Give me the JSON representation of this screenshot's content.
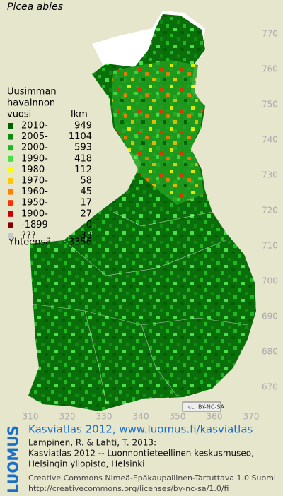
{
  "header": {
    "title": "Picea abies"
  },
  "legend": {
    "heading": [
      "Uusimman",
      "havainnon",
      "vuosi"
    ],
    "count_heading": "lkm",
    "items": [
      {
        "label": "2010-",
        "count": 949,
        "color": "#006000"
      },
      {
        "label": "2005-",
        "count": 1104,
        "color": "#108a10"
      },
      {
        "label": "2000-",
        "count": 593,
        "color": "#20b820"
      },
      {
        "label": "1990-",
        "count": 418,
        "color": "#48e048"
      },
      {
        "label": "1980-",
        "count": 112,
        "color": "#ffff00"
      },
      {
        "label": "1970-",
        "count": 58,
        "color": "#ffc800"
      },
      {
        "label": "1960-",
        "count": 45,
        "color": "#ff8000"
      },
      {
        "label": "1950-",
        "count": 17,
        "color": "#ff3000"
      },
      {
        "label": "1900-",
        "count": 27,
        "color": "#c80000"
      },
      {
        "label": "-1899",
        "count": 0,
        "color": "#800000"
      },
      {
        "label": "???",
        "count": 33,
        "color": "#c8c8c8"
      }
    ],
    "total_label": "Yhteensä",
    "total": 3356
  },
  "map": {
    "yticks": [
      770,
      760,
      750,
      740,
      730,
      720,
      710,
      700,
      690,
      680,
      670
    ],
    "xticks": [
      310,
      320,
      330,
      340,
      350,
      360,
      370
    ],
    "badge": {
      "icon": "cc",
      "text": "BY-NC-SA"
    }
  },
  "footer": {
    "logo": "LUOMUS",
    "link": "Kasviatlas 2012, www.luomus.fi/kasviatlas",
    "citation": [
      "Lampinen, R. & Lahti, T. 2013:",
      "Kasviatlas 2012 -- Luonnontieteellinen keskusmuseo,",
      "Helsingin yliopisto, Helsinki"
    ],
    "license": [
      "Creative Commons Nimeä-Epäkaupallinen-Tartuttava 1.0 Suomi",
      "http://creativecommons.org/licenses/by-nc-sa/1.0/fi"
    ]
  }
}
